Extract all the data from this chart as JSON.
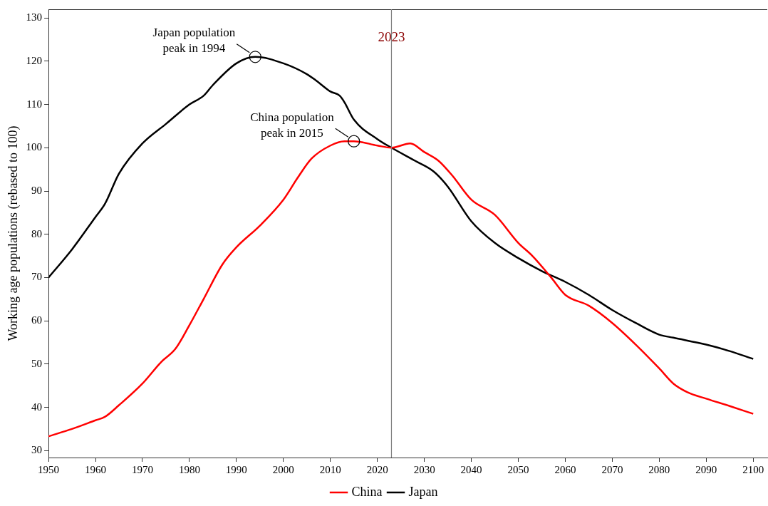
{
  "chart_data": {
    "type": "line",
    "ylabel": "Working age populations (rebased to 100)",
    "xlim": [
      1950,
      2103
    ],
    "xticks": [
      1950,
      1960,
      1970,
      1980,
      1990,
      2000,
      2010,
      2020,
      2030,
      2040,
      2050,
      2060,
      2070,
      2080,
      2090,
      2100
    ],
    "ylim": [
      28.4,
      132
    ],
    "yticks": [
      30,
      40,
      50,
      60,
      70,
      80,
      90,
      100,
      110,
      120,
      130
    ],
    "grid": false,
    "legend": "bottom",
    "line_style": "solid",
    "marker": "none",
    "series": [
      {
        "name": "China",
        "color": "#ff0000",
        "x": [
          1950,
          1955,
          1960,
          1962,
          1965,
          1970,
          1974,
          1977,
          1980,
          1983,
          1987,
          1990,
          1995,
          2000,
          2003,
          2006,
          2010,
          2013,
          2015,
          2020,
          2023,
          2027,
          2030,
          2033,
          2036,
          2040,
          2045,
          2050,
          2053,
          2057,
          2060,
          2065,
          2070,
          2075,
          2080,
          2083,
          2086,
          2090,
          2095,
          2100
        ],
        "values": [
          33.3,
          35,
          37,
          37.8,
          40.5,
          45.5,
          50.5,
          53.5,
          59,
          65,
          73,
          77,
          82,
          88,
          93,
          97.5,
          100.5,
          101.5,
          101.5,
          100.5,
          100,
          101,
          99,
          97,
          93.5,
          88,
          84.5,
          78,
          75,
          70,
          66,
          63.5,
          59.5,
          54.5,
          49,
          45.5,
          43.5,
          42,
          40.3,
          38.5
        ]
      },
      {
        "name": "Japan",
        "color": "#000000",
        "x": [
          1950,
          1955,
          1960,
          1962,
          1965,
          1970,
          1975,
          1980,
          1983,
          1985,
          1990,
          1994,
          2000,
          2005,
          2007,
          2010,
          2012,
          2013,
          2015,
          2020,
          2023,
          2028,
          2032,
          2035,
          2040,
          2045,
          2050,
          2055,
          2060,
          2065,
          2070,
          2075,
          2080,
          2083,
          2090,
          2095,
          2100
        ],
        "values": [
          70,
          76.5,
          84,
          87,
          94,
          101,
          105.5,
          110,
          112,
          114.5,
          119.5,
          121,
          119.5,
          117,
          115.5,
          113,
          112,
          110.5,
          106.5,
          102,
          100,
          97,
          94.5,
          91,
          83,
          78,
          74.5,
          71.5,
          69,
          66,
          62.5,
          59.5,
          56.8,
          56.1,
          54.5,
          53,
          51.2
        ]
      }
    ],
    "ref_lines": [
      {
        "axis": "x",
        "value": 2023,
        "label": "2023",
        "color": "#808080"
      }
    ],
    "annotations": [
      {
        "text": "Japan population peak in 1994",
        "x": 1994,
        "y": 121
      },
      {
        "text": "China population peak in 2015",
        "x": 2015,
        "y": 101.5
      }
    ]
  }
}
